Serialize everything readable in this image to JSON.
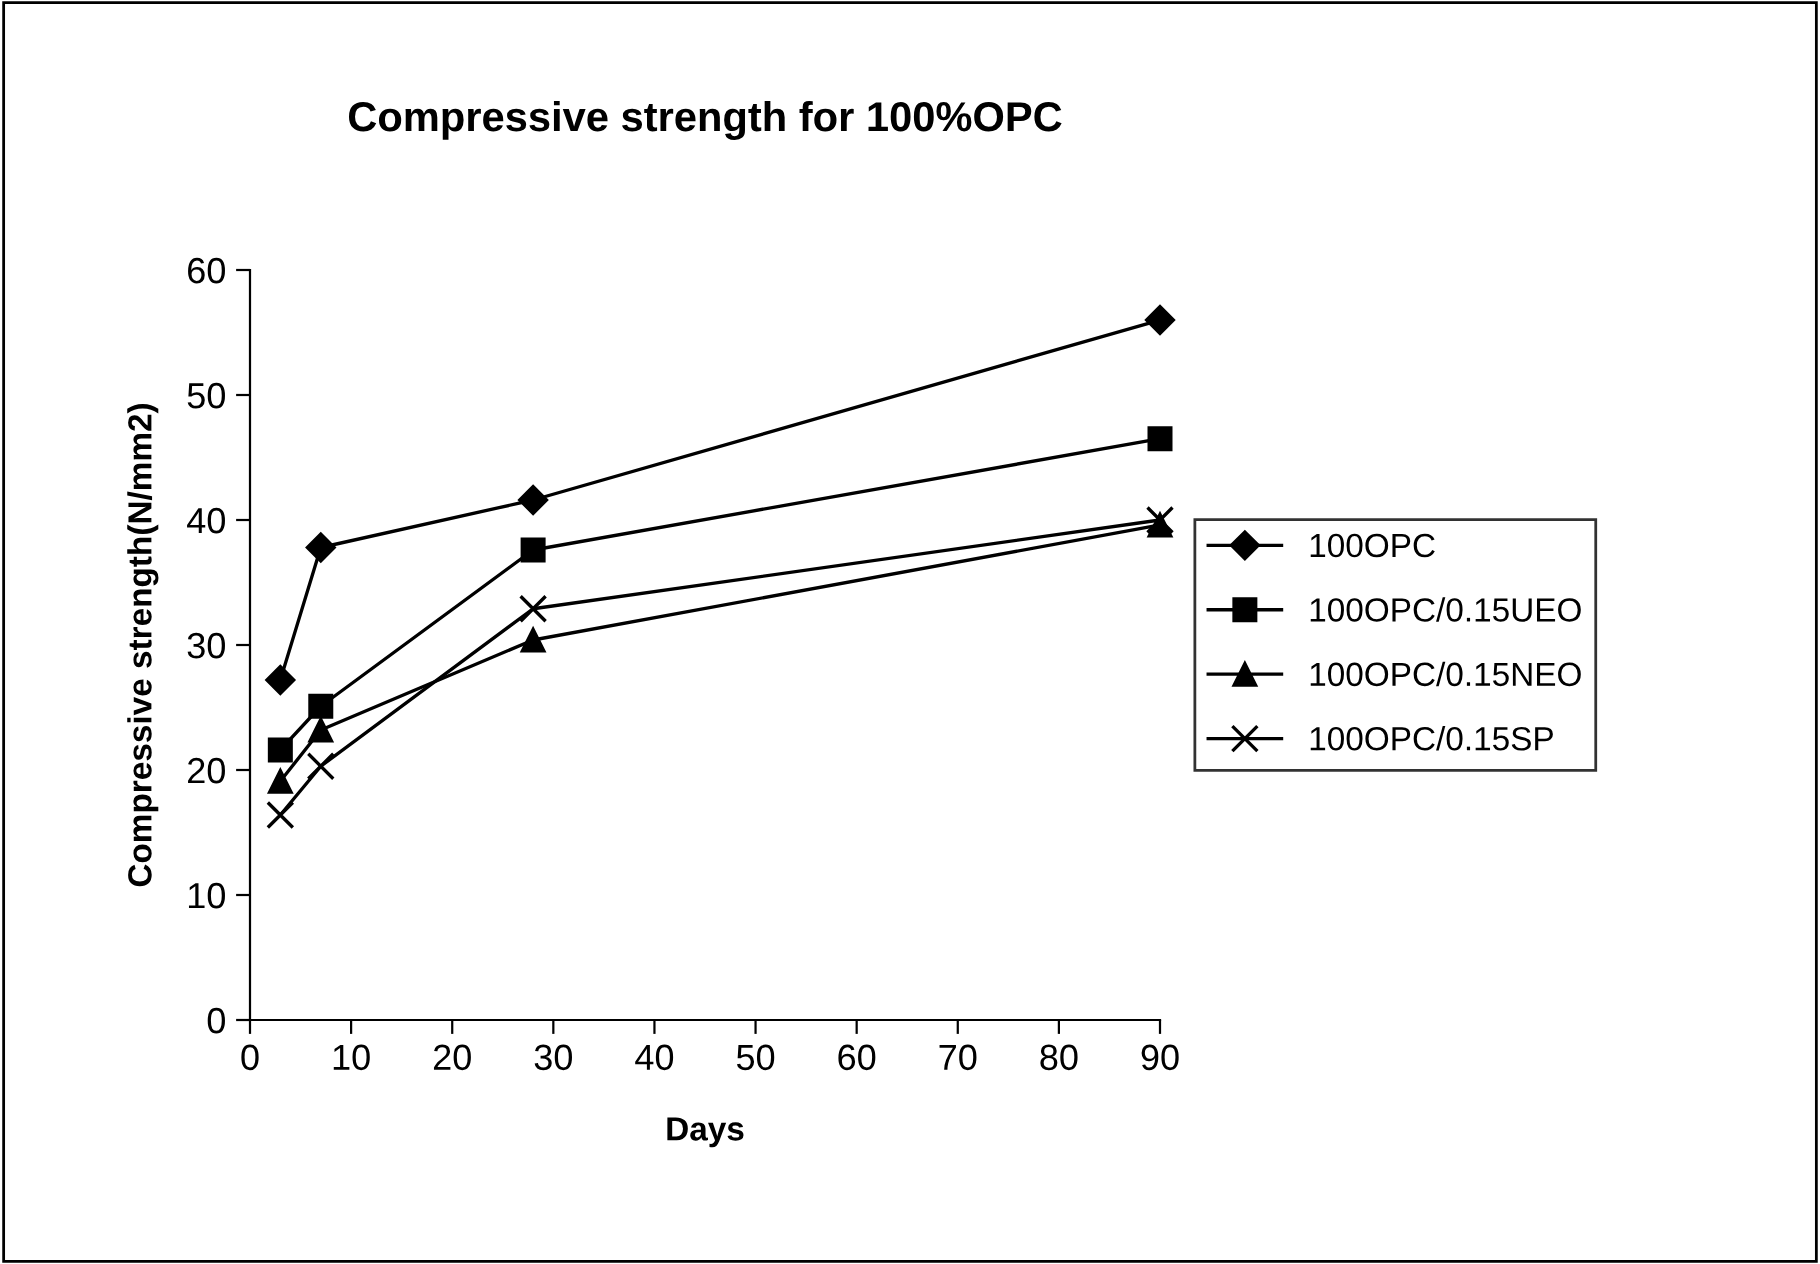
{
  "chart_data": {
    "type": "line",
    "title": "Compressive strength for 100%OPC",
    "xlabel": "Days",
    "ylabel": "Compressive strength(N/mm2)",
    "x": [
      3,
      7,
      28,
      90
    ],
    "series": [
      {
        "name": "100OPC",
        "color": "#000000",
        "marker": "diamond",
        "values": [
          27.2,
          37.8,
          41.6,
          56.0
        ]
      },
      {
        "name": "100OPC/0.15UEO",
        "color": "#000000",
        "marker": "square",
        "values": [
          21.6,
          25.1,
          37.6,
          46.5
        ]
      },
      {
        "name": "100OPC/0.15NEO",
        "color": "#000000",
        "marker": "triangle",
        "values": [
          19.1,
          23.2,
          30.4,
          39.6
        ]
      },
      {
        "name": "100OPC/0.15SP",
        "color": "#000000",
        "marker": "cross",
        "values": [
          16.4,
          20.3,
          32.9,
          40.0
        ]
      }
    ],
    "xlim": [
      0,
      90
    ],
    "xticks": [
      0,
      10,
      20,
      30,
      40,
      50,
      60,
      70,
      80,
      90
    ],
    "ylim": [
      0,
      60
    ],
    "yticks": [
      0,
      10,
      20,
      30,
      40,
      50,
      60
    ],
    "grid": false,
    "legend": "right",
    "line_style": "solid"
  }
}
